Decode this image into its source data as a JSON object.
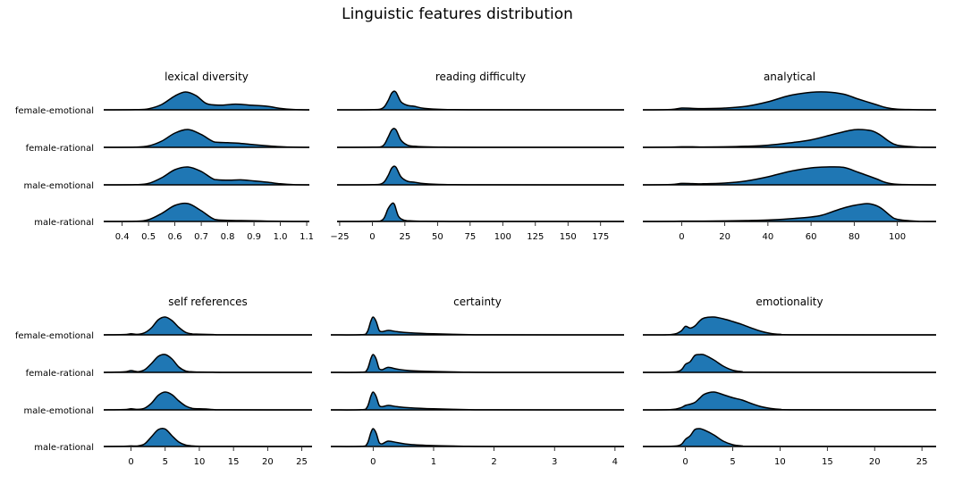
{
  "title": "Linguistic features distribution",
  "categories": [
    "female-emotional",
    "female-rational",
    "male-emotional",
    "male-rational"
  ],
  "colors": {
    "fill": "#1f77b4",
    "line": "#000000"
  },
  "chart_data": [
    {
      "type": "area",
      "subtype": "ridgeline",
      "title": "lexical diversity",
      "xlim": [
        0.33,
        1.11
      ],
      "xticks": [
        0.4,
        0.5,
        0.6,
        0.7,
        0.8,
        0.9,
        1.0,
        1.1
      ],
      "xticklabels": [
        "0.4",
        "0.5",
        "0.6",
        "0.7",
        "0.8",
        "0.9",
        "1.0",
        "1.1"
      ],
      "series": [
        {
          "name": "female-emotional",
          "x": [
            0.33,
            0.45,
            0.5,
            0.55,
            0.6,
            0.64,
            0.68,
            0.72,
            0.77,
            0.83,
            0.88,
            0.95,
            1.0,
            1.05,
            1.11
          ],
          "y": [
            0,
            0.01,
            0.06,
            0.3,
            0.78,
            1.0,
            0.8,
            0.35,
            0.26,
            0.32,
            0.27,
            0.2,
            0.08,
            0.02,
            0
          ]
        },
        {
          "name": "female-rational",
          "x": [
            0.33,
            0.45,
            0.5,
            0.55,
            0.6,
            0.65,
            0.7,
            0.75,
            0.8,
            0.85,
            0.9,
            0.95,
            1.0,
            1.05,
            1.11
          ],
          "y": [
            0,
            0.01,
            0.08,
            0.35,
            0.8,
            1.0,
            0.72,
            0.3,
            0.26,
            0.22,
            0.15,
            0.09,
            0.04,
            0.01,
            0
          ]
        },
        {
          "name": "male-emotional",
          "x": [
            0.33,
            0.45,
            0.5,
            0.55,
            0.6,
            0.65,
            0.7,
            0.75,
            0.8,
            0.85,
            0.9,
            0.95,
            1.0,
            1.05,
            1.11
          ],
          "y": [
            0,
            0.01,
            0.08,
            0.4,
            0.85,
            1.0,
            0.75,
            0.3,
            0.26,
            0.28,
            0.22,
            0.15,
            0.06,
            0.01,
            0
          ]
        },
        {
          "name": "male-rational",
          "x": [
            0.33,
            0.45,
            0.5,
            0.55,
            0.6,
            0.65,
            0.7,
            0.75,
            0.8,
            0.85,
            0.9,
            0.95,
            1.0,
            1.05,
            1.11
          ],
          "y": [
            0,
            0.01,
            0.1,
            0.45,
            0.9,
            1.0,
            0.6,
            0.12,
            0.06,
            0.05,
            0.04,
            0.02,
            0.01,
            0,
            0
          ]
        }
      ]
    },
    {
      "type": "area",
      "subtype": "ridgeline",
      "title": "reading difficulty",
      "xlim": [
        -27,
        193
      ],
      "xticks": [
        -25,
        0,
        25,
        50,
        75,
        100,
        125,
        150,
        175
      ],
      "xticklabels": [
        "−25",
        "0",
        "25",
        "50",
        "75",
        "100",
        "125",
        "150",
        "175"
      ],
      "series": [
        {
          "name": "female-emotional",
          "x": [
            -27,
            0,
            8,
            12,
            15,
            18,
            22,
            27,
            32,
            40,
            55,
            80,
            193
          ],
          "y": [
            0,
            0.01,
            0.1,
            0.5,
            0.95,
            1.0,
            0.45,
            0.25,
            0.2,
            0.08,
            0.02,
            0.005,
            0
          ]
        },
        {
          "name": "female-rational",
          "x": [
            -27,
            0,
            8,
            12,
            15,
            18,
            22,
            27,
            32,
            40,
            55,
            80,
            193
          ],
          "y": [
            0,
            0.01,
            0.08,
            0.55,
            0.98,
            1.0,
            0.4,
            0.12,
            0.06,
            0.03,
            0.01,
            0.003,
            0
          ]
        },
        {
          "name": "male-emotional",
          "x": [
            -27,
            0,
            8,
            12,
            15,
            18,
            22,
            27,
            32,
            40,
            55,
            80,
            193
          ],
          "y": [
            0,
            0.01,
            0.1,
            0.5,
            0.95,
            1.0,
            0.45,
            0.2,
            0.15,
            0.07,
            0.02,
            0.005,
            0
          ]
        },
        {
          "name": "male-rational",
          "x": [
            -27,
            0,
            8,
            12,
            15,
            17,
            20,
            24,
            30,
            40,
            55,
            80,
            193
          ],
          "y": [
            0,
            0.01,
            0.1,
            0.7,
            1.0,
            0.95,
            0.3,
            0.08,
            0.03,
            0.01,
            0.004,
            0.001,
            0
          ]
        }
      ]
    },
    {
      "type": "area",
      "subtype": "ridgeline",
      "title": "analytical",
      "xlim": [
        -18,
        118
      ],
      "xticks": [
        0,
        20,
        40,
        60,
        80,
        100
      ],
      "xticklabels": [
        "0",
        "20",
        "40",
        "60",
        "80",
        "100"
      ],
      "series": [
        {
          "name": "female-emotional",
          "x": [
            -18,
            -5,
            0,
            5,
            10,
            20,
            30,
            40,
            50,
            60,
            67,
            75,
            82,
            90,
            95,
            100,
            110,
            118
          ],
          "y": [
            0,
            0.02,
            0.1,
            0.08,
            0.07,
            0.1,
            0.2,
            0.45,
            0.8,
            0.98,
            1.0,
            0.88,
            0.6,
            0.3,
            0.12,
            0.04,
            0.005,
            0
          ]
        },
        {
          "name": "female-rational",
          "x": [
            -18,
            -5,
            0,
            5,
            10,
            20,
            30,
            40,
            50,
            60,
            70,
            78,
            82,
            88,
            92,
            96,
            100,
            110,
            118
          ],
          "y": [
            0,
            0.01,
            0.03,
            0.03,
            0.02,
            0.03,
            0.06,
            0.12,
            0.25,
            0.42,
            0.72,
            0.95,
            1.0,
            0.93,
            0.7,
            0.35,
            0.12,
            0.01,
            0
          ]
        },
        {
          "name": "male-emotional",
          "x": [
            -18,
            -5,
            0,
            5,
            10,
            20,
            30,
            40,
            50,
            60,
            67,
            75,
            82,
            90,
            95,
            100,
            110,
            118
          ],
          "y": [
            0,
            0.02,
            0.08,
            0.07,
            0.06,
            0.1,
            0.22,
            0.45,
            0.75,
            0.95,
            1.0,
            0.98,
            0.7,
            0.35,
            0.12,
            0.03,
            0.005,
            0
          ]
        },
        {
          "name": "male-rational",
          "x": [
            -18,
            -5,
            0,
            10,
            20,
            30,
            40,
            50,
            60,
            65,
            70,
            75,
            80,
            86,
            90,
            93,
            97,
            100,
            110,
            118
          ],
          "y": [
            0,
            0.005,
            0.02,
            0.02,
            0.03,
            0.05,
            0.08,
            0.15,
            0.25,
            0.35,
            0.55,
            0.75,
            0.9,
            1.0,
            0.9,
            0.7,
            0.3,
            0.12,
            0.005,
            0
          ]
        }
      ]
    },
    {
      "type": "area",
      "subtype": "ridgeline",
      "title": "self references",
      "xlim": [
        -4,
        26.5
      ],
      "xticks": [
        0,
        5,
        10,
        15,
        20,
        25
      ],
      "xticklabels": [
        "0",
        "5",
        "10",
        "15",
        "20",
        "25"
      ],
      "series": [
        {
          "name": "female-emotional",
          "x": [
            -4,
            -1,
            0,
            1,
            2,
            3,
            4,
            5,
            6,
            7,
            8,
            9,
            10,
            12,
            14,
            26.5
          ],
          "y": [
            0,
            0.02,
            0.06,
            0.03,
            0.12,
            0.4,
            0.85,
            1.0,
            0.8,
            0.42,
            0.14,
            0.05,
            0.04,
            0.02,
            0.005,
            0
          ]
        },
        {
          "name": "female-rational",
          "x": [
            -4,
            -1,
            0,
            1,
            2,
            3,
            4,
            5,
            6,
            7,
            8,
            9,
            10,
            12,
            14,
            26.5
          ],
          "y": [
            0,
            0.03,
            0.1,
            0.04,
            0.15,
            0.5,
            0.9,
            1.0,
            0.75,
            0.3,
            0.08,
            0.03,
            0.02,
            0.01,
            0.003,
            0
          ]
        },
        {
          "name": "male-emotional",
          "x": [
            -4,
            -1,
            0,
            1,
            2,
            3,
            4,
            5,
            6,
            7,
            8,
            9,
            10,
            11,
            12,
            14,
            26.5
          ],
          "y": [
            0,
            0.02,
            0.06,
            0.03,
            0.1,
            0.38,
            0.82,
            1.0,
            0.85,
            0.5,
            0.22,
            0.08,
            0.06,
            0.05,
            0.02,
            0.005,
            0
          ]
        },
        {
          "name": "male-rational",
          "x": [
            -4,
            -1,
            0,
            1,
            2,
            3,
            4,
            5,
            6,
            7,
            8,
            9,
            10,
            12,
            26.5
          ],
          "y": [
            0,
            0.01,
            0.03,
            0.03,
            0.15,
            0.55,
            0.95,
            0.98,
            0.6,
            0.25,
            0.08,
            0.03,
            0.01,
            0.005,
            0
          ]
        }
      ]
    },
    {
      "type": "area",
      "subtype": "ridgeline",
      "title": "certainty",
      "xlim": [
        -0.7,
        4.15
      ],
      "xticks": [
        0,
        1,
        2,
        3,
        4
      ],
      "xticklabels": [
        "0",
        "1",
        "2",
        "3",
        "4"
      ],
      "series": [
        {
          "name": "female-emotional",
          "x": [
            -0.7,
            -0.2,
            -0.1,
            -0.04,
            0,
            0.05,
            0.1,
            0.15,
            0.25,
            0.4,
            0.6,
            1.0,
            1.5,
            2.0,
            4.15
          ],
          "y": [
            0,
            0.01,
            0.15,
            0.75,
            1.0,
            0.75,
            0.25,
            0.18,
            0.25,
            0.18,
            0.12,
            0.06,
            0.02,
            0.005,
            0
          ]
        },
        {
          "name": "female-rational",
          "x": [
            -0.7,
            -0.2,
            -0.1,
            -0.04,
            0,
            0.05,
            0.1,
            0.15,
            0.25,
            0.4,
            0.6,
            1.0,
            1.5,
            2.0,
            4.15
          ],
          "y": [
            0,
            0.01,
            0.15,
            0.75,
            1.0,
            0.75,
            0.2,
            0.15,
            0.28,
            0.18,
            0.1,
            0.05,
            0.015,
            0.003,
            0
          ]
        },
        {
          "name": "male-emotional",
          "x": [
            -0.7,
            -0.2,
            -0.1,
            -0.04,
            0,
            0.05,
            0.1,
            0.15,
            0.25,
            0.4,
            0.6,
            1.0,
            1.5,
            2.0,
            4.15
          ],
          "y": [
            0,
            0.01,
            0.15,
            0.75,
            1.0,
            0.75,
            0.25,
            0.18,
            0.25,
            0.18,
            0.12,
            0.06,
            0.02,
            0.005,
            0
          ]
        },
        {
          "name": "male-rational",
          "x": [
            -0.7,
            -0.2,
            -0.1,
            -0.04,
            0,
            0.05,
            0.1,
            0.15,
            0.25,
            0.4,
            0.6,
            1.0,
            1.5,
            2.0,
            4.15
          ],
          "y": [
            0,
            0.01,
            0.15,
            0.75,
            1.0,
            0.75,
            0.22,
            0.15,
            0.3,
            0.22,
            0.12,
            0.05,
            0.015,
            0.003,
            0
          ]
        }
      ]
    },
    {
      "type": "area",
      "subtype": "ridgeline",
      "title": "emotionality",
      "xlim": [
        -4.5,
        26.5
      ],
      "xticks": [
        0,
        5,
        10,
        15,
        20,
        25
      ],
      "xticklabels": [
        "0",
        "5",
        "10",
        "15",
        "20",
        "25"
      ],
      "series": [
        {
          "name": "female-emotional",
          "x": [
            -4.5,
            -1.5,
            -0.5,
            0,
            0.5,
            1,
            1.5,
            2,
            3,
            4,
            5,
            6,
            7,
            8,
            9,
            10,
            12,
            26.5
          ],
          "y": [
            0,
            0.02,
            0.2,
            0.48,
            0.38,
            0.5,
            0.78,
            0.95,
            1.0,
            0.9,
            0.75,
            0.58,
            0.38,
            0.2,
            0.08,
            0.03,
            0.005,
            0
          ]
        },
        {
          "name": "female-rational",
          "x": [
            -4.5,
            -1.5,
            -0.5,
            0,
            0.5,
            1,
            1.5,
            2,
            3,
            4,
            5,
            6,
            7,
            26.5
          ],
          "y": [
            0,
            0.01,
            0.12,
            0.45,
            0.6,
            0.95,
            1.0,
            0.98,
            0.7,
            0.35,
            0.12,
            0.04,
            0.01,
            0
          ]
        },
        {
          "name": "male-emotional",
          "x": [
            -4.5,
            -1.5,
            -0.5,
            0,
            0.5,
            1,
            1.5,
            2,
            3,
            4,
            5,
            6,
            7,
            8,
            9,
            10,
            12,
            26.5
          ],
          "y": [
            0,
            0.02,
            0.12,
            0.25,
            0.32,
            0.42,
            0.65,
            0.88,
            1.0,
            0.85,
            0.68,
            0.55,
            0.35,
            0.18,
            0.08,
            0.03,
            0.005,
            0
          ]
        },
        {
          "name": "male-rational",
          "x": [
            -4.5,
            -1.5,
            -0.5,
            0,
            0.5,
            1,
            1.5,
            2,
            3,
            4,
            5,
            6,
            7,
            26.5
          ],
          "y": [
            0,
            0.01,
            0.1,
            0.4,
            0.6,
            0.95,
            1.0,
            0.92,
            0.65,
            0.3,
            0.1,
            0.03,
            0.01,
            0
          ]
        }
      ]
    }
  ]
}
